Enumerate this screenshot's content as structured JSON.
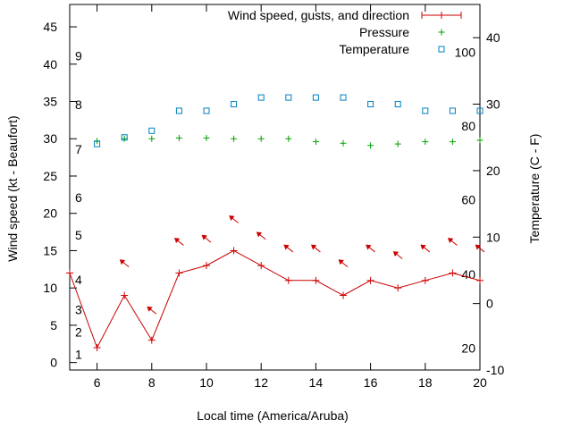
{
  "chart_data": {
    "type": "line",
    "xlabel": "Local time (America/Aruba)",
    "ylabel": "Wind speed (kt - Beaufort)",
    "y2label": "Temperature (C - F)",
    "xlim": [
      5,
      20
    ],
    "ylim": [
      -1,
      48
    ],
    "y2lim": [
      -10,
      45
    ],
    "x_ticks": [
      6,
      8,
      10,
      12,
      14,
      16,
      18,
      20
    ],
    "y_ticks": [
      0,
      5,
      10,
      15,
      20,
      25,
      30,
      35,
      40,
      45
    ],
    "y2_ticks": [
      -10,
      0,
      10,
      20,
      30,
      40
    ],
    "beaufort_labels": [
      {
        "label": "1",
        "kt": 1.1
      },
      {
        "label": "2",
        "kt": 4.1
      },
      {
        "label": "3",
        "kt": 7.1
      },
      {
        "label": "4",
        "kt": 11.1
      },
      {
        "label": "5",
        "kt": 17.1
      },
      {
        "label": "6",
        "kt": 22.1
      },
      {
        "label": "7",
        "kt": 28.6
      },
      {
        "label": "8",
        "kt": 34.6
      },
      {
        "label": "9",
        "kt": 41.1
      }
    ],
    "fahrenheit_labels": [
      {
        "label": "20",
        "temp_c": -6.7
      },
      {
        "label": "40",
        "temp_c": 4.4
      },
      {
        "label": "60",
        "temp_c": 15.6
      },
      {
        "label": "80",
        "temp_c": 26.7
      },
      {
        "label": "100",
        "temp_c": 37.8
      }
    ],
    "series": [
      {
        "name": "Wind speed, gusts, and direction",
        "color": "#cc0000",
        "x": [
          5,
          6,
          7,
          8,
          9,
          10,
          11,
          12,
          13,
          14,
          15,
          16,
          17,
          18,
          19,
          20
        ],
        "values": [
          12,
          2,
          9,
          3,
          12,
          13,
          15,
          13,
          11,
          11,
          9,
          11,
          10,
          11,
          12,
          11
        ]
      },
      {
        "name": "Pressure",
        "color": "#00a000",
        "x": [
          6,
          7,
          8,
          9,
          10,
          11,
          12,
          13,
          14,
          15,
          16,
          17,
          18,
          19,
          20
        ],
        "values": [
          29.7,
          30.0,
          30.0,
          30.1,
          30.1,
          30.0,
          30.0,
          30.0,
          29.6,
          29.4,
          29.1,
          29.3,
          29.6,
          29.6,
          29.8
        ]
      },
      {
        "name": "Temperature",
        "color": "#0080c0",
        "x": [
          6,
          7,
          8,
          9,
          10,
          11,
          12,
          13,
          14,
          15,
          16,
          17,
          18,
          19,
          20
        ],
        "values": [
          24.0,
          25.0,
          26.0,
          29.0,
          29.0,
          30.0,
          31.0,
          31.0,
          31.0,
          31.0,
          30.0,
          30.0,
          29.0,
          29.0,
          29.0
        ]
      }
    ],
    "wind_direction": {
      "color": "#cc0000",
      "points": [
        {
          "x": 7,
          "y": 13.3
        },
        {
          "x": 8,
          "y": 7.0
        },
        {
          "x": 9,
          "y": 16.2
        },
        {
          "x": 10,
          "y": 16.6
        },
        {
          "x": 11,
          "y": 19.2
        },
        {
          "x": 12,
          "y": 17.0
        },
        {
          "x": 13,
          "y": 15.3
        },
        {
          "x": 14,
          "y": 15.3
        },
        {
          "x": 15,
          "y": 13.3
        },
        {
          "x": 16,
          "y": 15.3
        },
        {
          "x": 17,
          "y": 14.4
        },
        {
          "x": 18,
          "y": 15.3
        },
        {
          "x": 19,
          "y": 16.2
        },
        {
          "x": 20,
          "y": 15.3
        }
      ]
    },
    "legend_position": "top-right",
    "grid": false
  }
}
